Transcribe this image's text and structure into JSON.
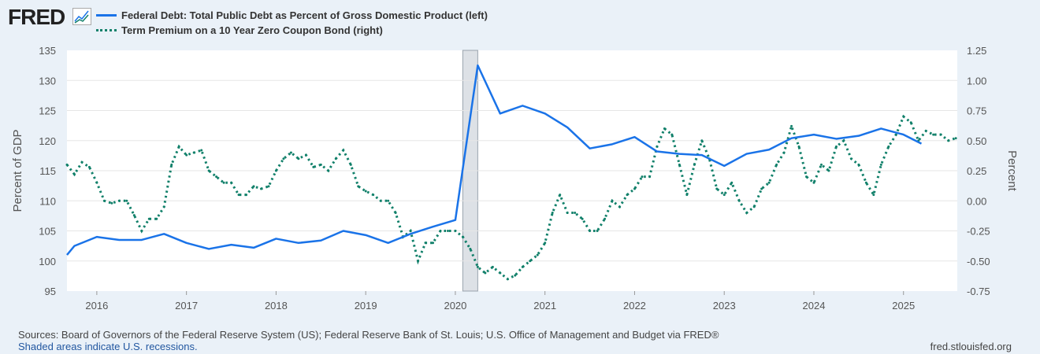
{
  "header": {
    "logo": "FRED",
    "logo_icon": "chart-line-icon"
  },
  "sources": "Sources: Board of Governors of the Federal Reserve System (US); Federal Reserve Bank of St. Louis; U.S. Office of Management and Budget via FRED®",
  "shaded_note": "Shaded areas indicate U.S. recessions.",
  "site": "fred.stlouisfed.org",
  "chart_data": {
    "type": "line",
    "xlabel": "",
    "ylabel": "Percent of GDP",
    "y2label": "Percent",
    "ylim": [
      95,
      135
    ],
    "y2lim": [
      -0.75,
      1.25
    ],
    "xlim": [
      2015.667,
      2025.6
    ],
    "x_ticks": [
      "2016",
      "2017",
      "2018",
      "2019",
      "2020",
      "2021",
      "2022",
      "2023",
      "2024",
      "2025"
    ],
    "y_ticks": [
      "95",
      "100",
      "105",
      "110",
      "115",
      "120",
      "125",
      "130",
      "135"
    ],
    "y2_ticks": [
      "-0.75",
      "-0.50",
      "-0.25",
      "0.00",
      "0.25",
      "0.50",
      "0.75",
      "1.00",
      "1.25"
    ],
    "recessions": [
      [
        2020.083,
        2020.25
      ]
    ],
    "colors": {
      "debt": "#1a73e8",
      "term": "#11806a"
    },
    "series": [
      {
        "name": "Federal Debt: Total Public Debt as Percent of Gross Domestic Product (left)",
        "axis": "left",
        "style": "solid",
        "x": [
          2015.667,
          2015.75,
          2016,
          2016.25,
          2016.5,
          2016.75,
          2017,
          2017.25,
          2017.5,
          2017.75,
          2018,
          2018.25,
          2018.5,
          2018.75,
          2019,
          2019.25,
          2019.5,
          2019.75,
          2020,
          2020.25,
          2020.5,
          2020.75,
          2021,
          2021.25,
          2021.5,
          2021.75,
          2022,
          2022.25,
          2022.5,
          2022.75,
          2023,
          2023.25,
          2023.5,
          2023.75,
          2024,
          2024.25,
          2024.5,
          2024.75,
          2025,
          2025.2
        ],
        "values": [
          101,
          102.5,
          104,
          103.5,
          103.5,
          104.5,
          103,
          102,
          102.7,
          102.2,
          103.7,
          103,
          103.4,
          105,
          104.3,
          103,
          104.5,
          105.7,
          106.8,
          132.5,
          124.5,
          125.8,
          124.5,
          122.2,
          118.7,
          119.4,
          120.6,
          118.2,
          117.8,
          117.6,
          115.8,
          117.8,
          118.5,
          120.4,
          121,
          120.3,
          120.8,
          122,
          121,
          119.5
        ]
      },
      {
        "name": "Term Premium on a 10 Year Zero Coupon Bond (right)",
        "axis": "right",
        "style": "dotted",
        "start": 2015.667,
        "step_months": 1,
        "values": [
          0.3,
          0.22,
          0.32,
          0.28,
          0.15,
          0.0,
          -0.02,
          0.0,
          0.0,
          -0.12,
          -0.25,
          -0.15,
          -0.15,
          -0.05,
          0.3,
          0.45,
          0.38,
          0.4,
          0.42,
          0.25,
          0.2,
          0.15,
          0.15,
          0.05,
          0.05,
          0.12,
          0.1,
          0.12,
          0.25,
          0.35,
          0.4,
          0.35,
          0.38,
          0.28,
          0.3,
          0.25,
          0.35,
          0.42,
          0.3,
          0.12,
          0.08,
          0.05,
          0.0,
          0.0,
          -0.1,
          -0.3,
          -0.25,
          -0.5,
          -0.35,
          -0.35,
          -0.25,
          -0.25,
          -0.25,
          -0.3,
          -0.4,
          -0.55,
          -0.6,
          -0.55,
          -0.6,
          -0.65,
          -0.62,
          -0.55,
          -0.5,
          -0.45,
          -0.35,
          -0.1,
          0.05,
          -0.1,
          -0.1,
          -0.15,
          -0.25,
          -0.25,
          -0.15,
          0.0,
          -0.05,
          0.05,
          0.1,
          0.2,
          0.2,
          0.45,
          0.6,
          0.55,
          0.3,
          0.05,
          0.3,
          0.5,
          0.35,
          0.1,
          0.05,
          0.15,
          0.0,
          -0.1,
          -0.05,
          0.1,
          0.15,
          0.3,
          0.4,
          0.62,
          0.45,
          0.2,
          0.15,
          0.3,
          0.25,
          0.45,
          0.5,
          0.35,
          0.3,
          0.15,
          0.05,
          0.3,
          0.45,
          0.55,
          0.7,
          0.65,
          0.5,
          0.58,
          0.55,
          0.55,
          0.5,
          0.52
        ]
      }
    ]
  }
}
